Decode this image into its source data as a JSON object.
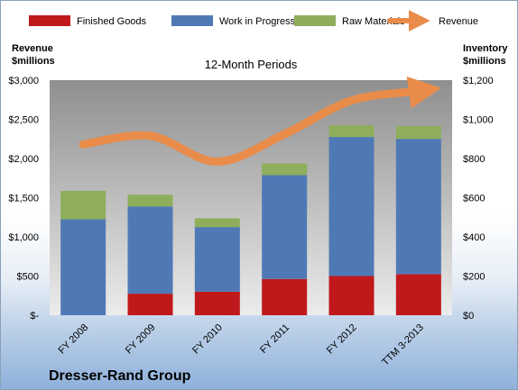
{
  "chart_data": {
    "type": "bar",
    "subtitle": "12-Month Periods",
    "company": "Dresser-Rand Group",
    "categories": [
      "FY 2008",
      "FY 2009",
      "FY 2010",
      "FY 2011",
      "FY 2012",
      "TTM 3-2013"
    ],
    "ylabel_left": [
      "Revenue",
      "$millions"
    ],
    "ylabel_right": [
      "Inventory",
      "$millions"
    ],
    "left_axis": {
      "ylim": [
        0,
        3000
      ],
      "ticks": [
        0,
        500,
        1000,
        1500,
        2000,
        2500,
        3000
      ],
      "tick_labels": [
        "$-",
        "$500",
        "$1,000",
        "$1,500",
        "$2,000",
        "$2,500",
        "$3,000"
      ]
    },
    "right_axis": {
      "ylim": [
        0,
        1200
      ],
      "ticks": [
        0,
        200,
        400,
        600,
        800,
        1000,
        1200
      ],
      "tick_labels": [
        "$0",
        "$200",
        "$400",
        "$600",
        "$800",
        "$1,000",
        "$1,200"
      ]
    },
    "stacked": true,
    "series": [
      {
        "name": "Finished Goods",
        "axis": "right",
        "color": "#c0191c",
        "values": [
          0,
          110,
          120,
          185,
          200,
          210
        ]
      },
      {
        "name": "Work in Progress",
        "axis": "right",
        "color": "#4f79b5",
        "values": [
          490,
          445,
          330,
          530,
          710,
          690
        ]
      },
      {
        "name": "Raw Materials",
        "axis": "right",
        "color": "#8eae5c",
        "values": [
          145,
          60,
          45,
          60,
          60,
          65
        ]
      },
      {
        "name": "Revenue",
        "axis": "left",
        "type": "line",
        "color": "#e98c4a",
        "values": [
          2180,
          2290,
          1960,
          2310,
          2740,
          2860
        ]
      }
    ],
    "legend_position": "top",
    "grid": false
  }
}
